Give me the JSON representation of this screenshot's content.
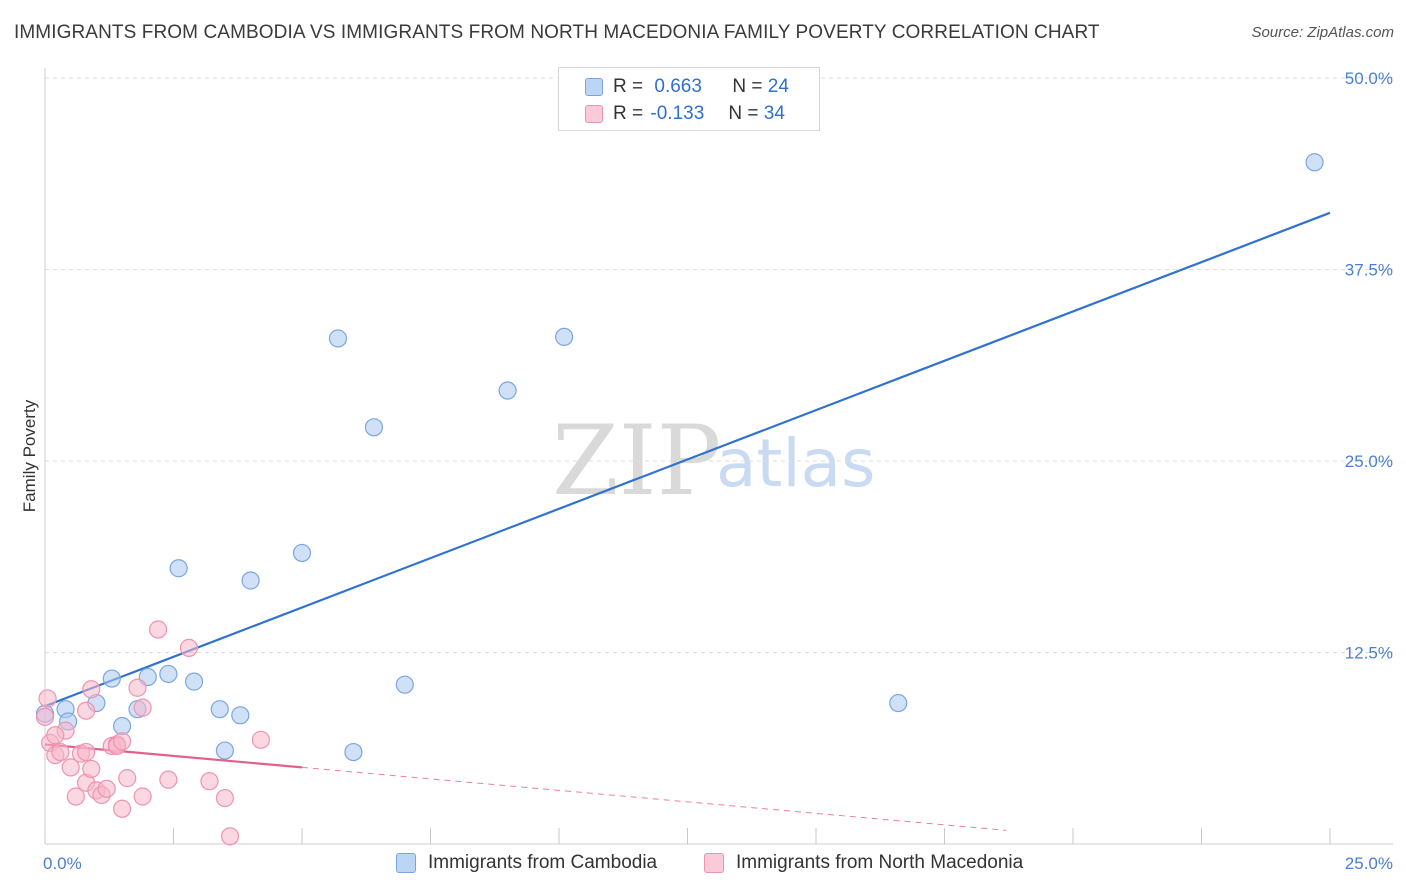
{
  "title": "IMMIGRANTS FROM CAMBODIA VS IMMIGRANTS FROM NORTH MACEDONIA FAMILY POVERTY CORRELATION CHART",
  "source": "Source: ZipAtlas.com",
  "watermark": {
    "zip": "ZIP",
    "atlas": "atlas"
  },
  "legend": {
    "rows": [
      {
        "r_label": "R =",
        "r_value": "0.663",
        "n_label": "N =",
        "n_value": "24",
        "color": "#a9c8f0"
      },
      {
        "r_label": "R =",
        "r_value": "-0.133",
        "n_label": "N =",
        "n_value": "34",
        "color": "#f7b6ca"
      }
    ]
  },
  "bottom_legend": [
    {
      "label": "Immigrants from Cambodia",
      "color": "#a9c8f0"
    },
    {
      "label": "Immigrants from North Macedonia",
      "color": "#f7b6ca"
    }
  ],
  "chart_data": {
    "type": "scatter",
    "title": "IMMIGRANTS FROM CAMBODIA VS IMMIGRANTS FROM NORTH MACEDONIA FAMILY POVERTY CORRELATION CHART",
    "xlabel": "",
    "ylabel": "Family Poverty",
    "xlim": [
      0,
      25
    ],
    "ylim": [
      0,
      50
    ],
    "x_tick_labels": [
      "0.0%",
      "25.0%"
    ],
    "y_ticks": [
      12.5,
      25.0,
      37.5,
      50.0
    ],
    "y_tick_labels": [
      "12.5%",
      "25.0%",
      "37.5%",
      "50.0%"
    ],
    "grid": true,
    "series": [
      {
        "name": "Immigrants from Cambodia",
        "color": "#a9c8f0",
        "stroke": "#7aa6e0",
        "trend_color": "#2f72d0",
        "trend": {
          "x0": 0,
          "y0": 9.0,
          "x1": 25,
          "y1": 41.2,
          "dashed_to": 25
        },
        "points": [
          [
            0.0,
            8.5
          ],
          [
            0.4,
            8.8
          ],
          [
            0.45,
            8.0
          ],
          [
            1.0,
            9.2
          ],
          [
            1.3,
            10.8
          ],
          [
            1.5,
            7.7
          ],
          [
            1.8,
            8.8
          ],
          [
            2.0,
            10.9
          ],
          [
            2.4,
            11.1
          ],
          [
            2.6,
            18.0
          ],
          [
            2.9,
            10.6
          ],
          [
            3.4,
            8.8
          ],
          [
            3.5,
            6.1
          ],
          [
            3.8,
            8.4
          ],
          [
            4.0,
            17.2
          ],
          [
            5.0,
            19.0
          ],
          [
            5.7,
            33.0
          ],
          [
            6.0,
            6.0
          ],
          [
            6.4,
            27.2
          ],
          [
            7.0,
            10.4
          ],
          [
            9.0,
            29.6
          ],
          [
            10.1,
            33.1
          ],
          [
            16.6,
            9.2
          ],
          [
            24.7,
            44.5
          ]
        ]
      },
      {
        "name": "Immigrants from North Macedonia",
        "color": "#f7b6ca",
        "stroke": "#ee93b0",
        "trend_color": "#e2608e",
        "trend": {
          "x0": 0,
          "y0": 6.5,
          "x1": 5.0,
          "y1": 5.0,
          "dashed_to": 18.7
        },
        "points": [
          [
            0.05,
            9.5
          ],
          [
            0.1,
            6.6
          ],
          [
            0.2,
            5.8
          ],
          [
            0.3,
            6.0
          ],
          [
            0.4,
            7.4
          ],
          [
            0.5,
            5.0
          ],
          [
            0.6,
            3.1
          ],
          [
            0.7,
            5.9
          ],
          [
            0.8,
            6.0
          ],
          [
            0.8,
            8.7
          ],
          [
            0.8,
            4.0
          ],
          [
            0.9,
            10.1
          ],
          [
            0.9,
            4.9
          ],
          [
            1.0,
            3.5
          ],
          [
            1.1,
            3.2
          ],
          [
            1.2,
            3.6
          ],
          [
            1.3,
            6.4
          ],
          [
            1.4,
            6.5
          ],
          [
            1.4,
            6.4
          ],
          [
            1.5,
            6.7
          ],
          [
            1.5,
            2.3
          ],
          [
            1.6,
            4.3
          ],
          [
            1.8,
            10.2
          ],
          [
            1.9,
            8.9
          ],
          [
            1.9,
            3.1
          ],
          [
            2.2,
            14.0
          ],
          [
            2.4,
            4.2
          ],
          [
            2.8,
            12.8
          ],
          [
            3.2,
            4.1
          ],
          [
            3.5,
            3.0
          ],
          [
            3.6,
            0.5
          ],
          [
            4.2,
            6.8
          ],
          [
            0.0,
            8.3
          ],
          [
            0.2,
            7.1
          ]
        ]
      }
    ]
  }
}
